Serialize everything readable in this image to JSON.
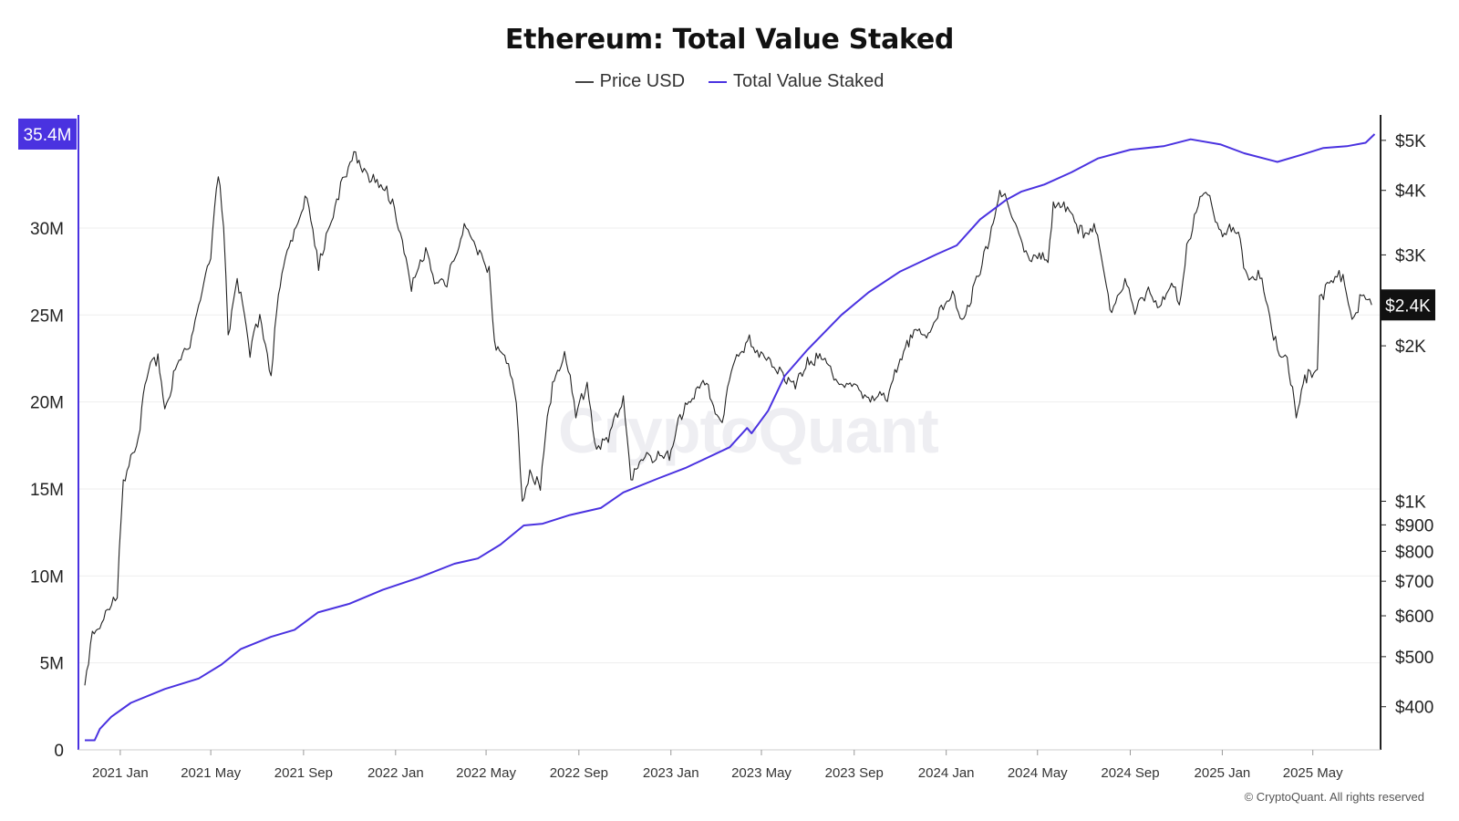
{
  "title": "Ethereum: Total Value Staked",
  "watermark": "CryptoQuant",
  "copyright": "© CryptoQuant. All rights reserved",
  "colors": {
    "price": "#222222",
    "staked": "#4a32e0",
    "grid": "#eeeeee",
    "badge_price": "#111111"
  },
  "chart_data": {
    "type": "line",
    "title": "Ethereum: Total Value Staked",
    "legend": {
      "placement": "top-center"
    },
    "grid": true,
    "x_ticks": [
      "2021 Jan",
      "2021 May",
      "2021 Sep",
      "2022 Jan",
      "2022 May",
      "2022 Sep",
      "2023 Jan",
      "2023 May",
      "2023 Sep",
      "2024 Jan",
      "2024 May",
      "2024 Sep",
      "2025 Jan",
      "2025 May"
    ],
    "x_range": [
      "2020-11-15",
      "2025-07-25"
    ],
    "left_axis": {
      "ticks": [
        "0",
        "5M",
        "10M",
        "15M",
        "20M",
        "25M",
        "30M"
      ],
      "tick_values": [
        0,
        5,
        10,
        15,
        20,
        25,
        30
      ],
      "range": [
        0,
        36.5
      ],
      "unit": "M ETH"
    },
    "right_axis": {
      "scale": "log",
      "ticks": [
        "$400",
        "$500",
        "$600",
        "$700",
        "$800",
        "$900",
        "$1K",
        "$2K",
        "$3K",
        "$4K",
        "$5K"
      ],
      "tick_values": [
        400,
        500,
        600,
        700,
        800,
        900,
        1000,
        2000,
        3000,
        4000,
        5000
      ],
      "range": [
        330,
        5600
      ]
    },
    "series": [
      {
        "name": "Price USD",
        "axis": "right",
        "points": [
          [
            "2020-11-15",
            440
          ],
          [
            "2020-11-25",
            560
          ],
          [
            "2020-12-10",
            590
          ],
          [
            "2020-12-28",
            650
          ],
          [
            "2021-01-05",
            1100
          ],
          [
            "2021-01-15",
            1230
          ],
          [
            "2021-01-25",
            1330
          ],
          [
            "2021-02-05",
            1720
          ],
          [
            "2021-02-20",
            1930
          ],
          [
            "2021-03-01",
            1510
          ],
          [
            "2021-03-15",
            1800
          ],
          [
            "2021-04-01",
            1970
          ],
          [
            "2021-04-15",
            2400
          ],
          [
            "2021-05-01",
            2950
          ],
          [
            "2021-05-11",
            4250
          ],
          [
            "2021-05-18",
            3400
          ],
          [
            "2021-05-24",
            2100
          ],
          [
            "2021-06-05",
            2700
          ],
          [
            "2021-06-22",
            1900
          ],
          [
            "2021-07-05",
            2300
          ],
          [
            "2021-07-20",
            1750
          ],
          [
            "2021-08-01",
            2600
          ],
          [
            "2021-08-15",
            3200
          ],
          [
            "2021-09-03",
            3900
          ],
          [
            "2021-09-21",
            2800
          ],
          [
            "2021-10-01",
            3300
          ],
          [
            "2021-10-15",
            3850
          ],
          [
            "2021-10-28",
            4250
          ],
          [
            "2021-11-09",
            4750
          ],
          [
            "2021-11-25",
            4300
          ],
          [
            "2021-12-10",
            4050
          ],
          [
            "2021-12-28",
            3850
          ],
          [
            "2022-01-10",
            3200
          ],
          [
            "2022-01-22",
            2550
          ],
          [
            "2022-02-10",
            3100
          ],
          [
            "2022-02-24",
            2650
          ],
          [
            "2022-03-10",
            2600
          ],
          [
            "2022-04-02",
            3450
          ],
          [
            "2022-04-20",
            3000
          ],
          [
            "2022-05-05",
            2850
          ],
          [
            "2022-05-12",
            2050
          ],
          [
            "2022-05-28",
            1850
          ],
          [
            "2022-06-10",
            1550
          ],
          [
            "2022-06-18",
            1000
          ],
          [
            "2022-06-28",
            1150
          ],
          [
            "2022-07-12",
            1050
          ],
          [
            "2022-07-28",
            1700
          ],
          [
            "2022-08-13",
            1950
          ],
          [
            "2022-08-28",
            1450
          ],
          [
            "2022-09-12",
            1700
          ],
          [
            "2022-09-22",
            1300
          ],
          [
            "2022-10-10",
            1300
          ],
          [
            "2022-10-30",
            1600
          ],
          [
            "2022-11-09",
            1100
          ],
          [
            "2022-11-25",
            1200
          ],
          [
            "2022-12-15",
            1250
          ],
          [
            "2022-12-30",
            1200
          ],
          [
            "2023-01-20",
            1550
          ],
          [
            "2023-02-15",
            1680
          ],
          [
            "2023-03-10",
            1420
          ],
          [
            "2023-03-22",
            1780
          ],
          [
            "2023-04-15",
            2100
          ],
          [
            "2023-04-28",
            1900
          ],
          [
            "2023-05-25",
            1820
          ],
          [
            "2023-06-15",
            1650
          ],
          [
            "2023-07-01",
            1900
          ],
          [
            "2023-07-22",
            1880
          ],
          [
            "2023-08-17",
            1680
          ],
          [
            "2023-09-10",
            1630
          ],
          [
            "2023-09-25",
            1600
          ],
          [
            "2023-10-15",
            1560
          ],
          [
            "2023-10-25",
            1800
          ],
          [
            "2023-11-10",
            2050
          ],
          [
            "2023-12-01",
            2100
          ],
          [
            "2023-12-28",
            2350
          ],
          [
            "2024-01-12",
            2500
          ],
          [
            "2024-01-22",
            2250
          ],
          [
            "2024-02-15",
            2750
          ],
          [
            "2024-03-01",
            3400
          ],
          [
            "2024-03-12",
            4000
          ],
          [
            "2024-03-28",
            3550
          ],
          [
            "2024-04-18",
            3000
          ],
          [
            "2024-05-01",
            2950
          ],
          [
            "2024-05-15",
            2900
          ],
          [
            "2024-05-22",
            3800
          ],
          [
            "2024-06-05",
            3800
          ],
          [
            "2024-06-24",
            3300
          ],
          [
            "2024-07-15",
            3450
          ],
          [
            "2024-08-05",
            2350
          ],
          [
            "2024-08-25",
            2700
          ],
          [
            "2024-09-07",
            2300
          ],
          [
            "2024-09-25",
            2600
          ],
          [
            "2024-10-12",
            2400
          ],
          [
            "2024-10-28",
            2600
          ],
          [
            "2024-11-05",
            2400
          ],
          [
            "2024-11-15",
            3150
          ],
          [
            "2024-12-05",
            3900
          ],
          [
            "2024-12-18",
            3750
          ],
          [
            "2024-12-30",
            3350
          ],
          [
            "2025-01-20",
            3300
          ],
          [
            "2025-02-03",
            2750
          ],
          [
            "2025-02-20",
            2700
          ],
          [
            "2025-03-10",
            2050
          ],
          [
            "2025-03-28",
            1900
          ],
          [
            "2025-04-09",
            1450
          ],
          [
            "2025-04-25",
            1800
          ],
          [
            "2025-05-07",
            1800
          ],
          [
            "2025-05-10",
            2500
          ],
          [
            "2025-05-28",
            2650
          ],
          [
            "2025-06-10",
            2750
          ],
          [
            "2025-06-22",
            2250
          ],
          [
            "2025-07-05",
            2500
          ],
          [
            "2025-07-18",
            2400
          ]
        ]
      },
      {
        "name": "Total Value Staked",
        "axis": "left",
        "points": [
          [
            "2020-11-15",
            0.55
          ],
          [
            "2020-11-28",
            0.55
          ],
          [
            "2020-12-05",
            1.2
          ],
          [
            "2020-12-20",
            1.9
          ],
          [
            "2021-01-15",
            2.7
          ],
          [
            "2021-03-01",
            3.5
          ],
          [
            "2021-04-15",
            4.1
          ],
          [
            "2021-05-15",
            4.9
          ],
          [
            "2021-06-10",
            5.8
          ],
          [
            "2021-07-20",
            6.5
          ],
          [
            "2021-08-20",
            6.9
          ],
          [
            "2021-09-20",
            7.9
          ],
          [
            "2021-11-01",
            8.4
          ],
          [
            "2021-12-15",
            9.2
          ],
          [
            "2022-02-01",
            9.9
          ],
          [
            "2022-03-20",
            10.7
          ],
          [
            "2022-04-20",
            11.0
          ],
          [
            "2022-05-20",
            11.8
          ],
          [
            "2022-06-20",
            12.9
          ],
          [
            "2022-07-15",
            13.0
          ],
          [
            "2022-08-20",
            13.5
          ],
          [
            "2022-09-30",
            13.9
          ],
          [
            "2022-10-30",
            14.8
          ],
          [
            "2022-12-15",
            15.6
          ],
          [
            "2023-01-20",
            16.2
          ],
          [
            "2023-03-20",
            17.4
          ],
          [
            "2023-04-12",
            18.5
          ],
          [
            "2023-04-18",
            18.2
          ],
          [
            "2023-05-10",
            19.5
          ],
          [
            "2023-06-01",
            21.5
          ],
          [
            "2023-07-01",
            23.0
          ],
          [
            "2023-08-15",
            25.0
          ],
          [
            "2023-09-20",
            26.3
          ],
          [
            "2023-11-01",
            27.5
          ],
          [
            "2023-12-20",
            28.5
          ],
          [
            "2024-01-15",
            29.0
          ],
          [
            "2024-02-15",
            30.5
          ],
          [
            "2024-03-20",
            31.6
          ],
          [
            "2024-04-10",
            32.1
          ],
          [
            "2024-05-10",
            32.5
          ],
          [
            "2024-06-15",
            33.2
          ],
          [
            "2024-07-20",
            34.0
          ],
          [
            "2024-09-01",
            34.5
          ],
          [
            "2024-10-15",
            34.7
          ],
          [
            "2024-11-20",
            35.1
          ],
          [
            "2024-12-30",
            34.8
          ],
          [
            "2025-01-30",
            34.3
          ],
          [
            "2025-03-15",
            33.8
          ],
          [
            "2025-04-15",
            34.2
          ],
          [
            "2025-05-15",
            34.6
          ],
          [
            "2025-06-15",
            34.7
          ],
          [
            "2025-07-10",
            34.9
          ],
          [
            "2025-07-22",
            35.4
          ]
        ]
      }
    ],
    "last_value_badges": {
      "left": "35.4M",
      "right": "$2.4K"
    }
  }
}
